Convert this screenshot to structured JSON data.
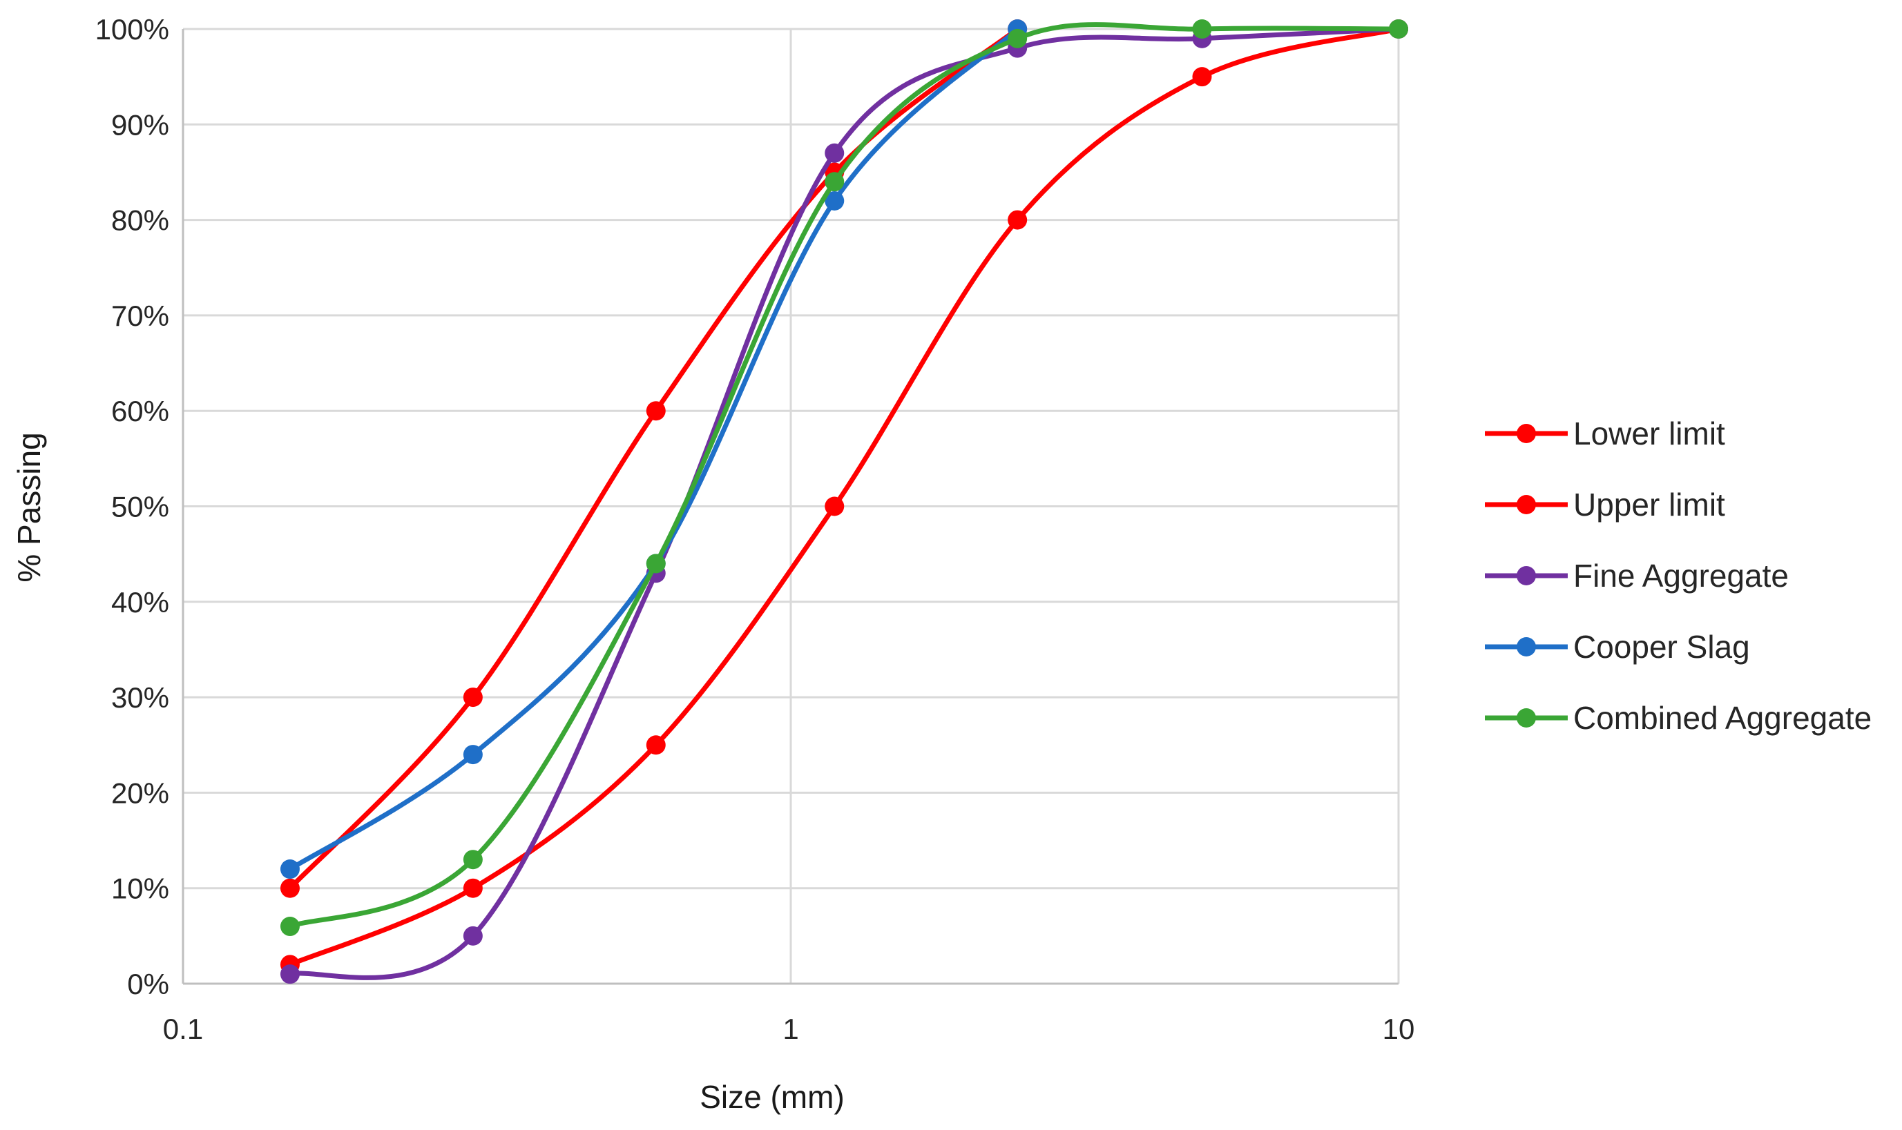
{
  "chart_data": {
    "type": "scatter",
    "x_scale": "log",
    "xlabel": "Size (mm)",
    "ylabel": "% Passing",
    "xlim": [
      0.1,
      10
    ],
    "ylim": [
      0,
      100
    ],
    "x_ticks": [
      {
        "value": 0.1,
        "label": "0.1"
      },
      {
        "value": 1,
        "label": "1"
      },
      {
        "value": 10,
        "label": "10"
      }
    ],
    "y_ticks": [
      {
        "value": 0,
        "label": "0%"
      },
      {
        "value": 10,
        "label": "10%"
      },
      {
        "value": 20,
        "label": "20%"
      },
      {
        "value": 30,
        "label": "30%"
      },
      {
        "value": 40,
        "label": "40%"
      },
      {
        "value": 50,
        "label": "50%"
      },
      {
        "value": 60,
        "label": "60%"
      },
      {
        "value": 70,
        "label": "70%"
      },
      {
        "value": 80,
        "label": "80%"
      },
      {
        "value": 90,
        "label": "90%"
      },
      {
        "value": 100,
        "label": "100%"
      }
    ],
    "grid": true,
    "legend_position": "right",
    "series": [
      {
        "name": "Lower limit",
        "color": "#ff0000",
        "x": [
          0.15,
          0.3,
          0.6,
          1.18,
          2.36,
          4.75,
          10
        ],
        "y": [
          2,
          10,
          25,
          50,
          80,
          95,
          100
        ]
      },
      {
        "name": "Upper limit",
        "color": "#ff0000",
        "x": [
          0.15,
          0.3,
          0.6,
          1.18,
          2.36
        ],
        "y": [
          10,
          30,
          60,
          85,
          100
        ]
      },
      {
        "name": "Fine Aggregate",
        "color": "#7030a0",
        "x": [
          0.15,
          0.3,
          0.6,
          1.18,
          2.36,
          4.75,
          10
        ],
        "y": [
          1,
          5,
          43,
          87,
          98,
          99,
          100
        ]
      },
      {
        "name": "Cooper Slag",
        "color": "#1f6fc8",
        "x": [
          0.15,
          0.3,
          0.6,
          1.18,
          2.36
        ],
        "y": [
          12,
          24,
          44,
          82,
          100
        ]
      },
      {
        "name": "Combined Aggregate",
        "color": "#3aa635",
        "x": [
          0.15,
          0.3,
          0.6,
          1.18,
          2.36,
          4.75,
          10
        ],
        "y": [
          6,
          13,
          44,
          84,
          99,
          100,
          100
        ]
      }
    ]
  }
}
